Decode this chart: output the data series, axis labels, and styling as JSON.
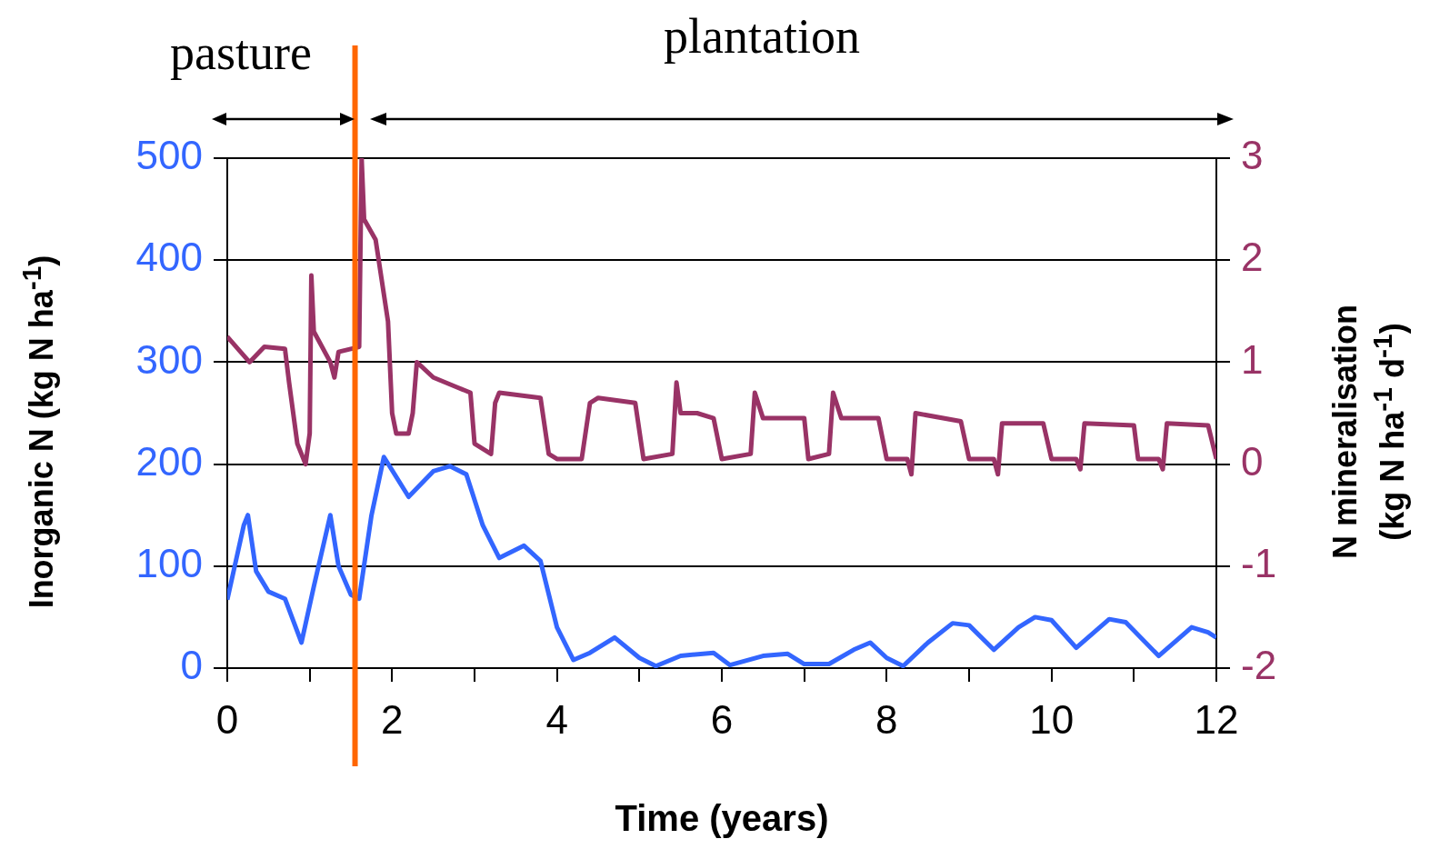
{
  "chart_data": {
    "type": "line",
    "xlabel": "Time (years)",
    "ylabel": "Inorganic N (kg N ha$^{-1}$)",
    "y2label": "N mineralisation\n(kg N ha$^{-1}$ d$^{-1}$)",
    "annotations": [
      "pasture",
      "plantation"
    ],
    "xlim": [
      0,
      12
    ],
    "xticks": [
      0,
      {
        "value": 1,
        "label": null
      },
      2,
      {
        "value": 3,
        "label": null
      },
      4,
      {
        "value": 5,
        "label": null
      },
      6,
      {
        "value": 7,
        "label": null
      },
      8,
      {
        "value": 9,
        "label": null
      },
      10,
      {
        "value": 11,
        "label": null
      },
      12
    ],
    "ylim": [
      0,
      500
    ],
    "yticks": [
      0,
      100,
      200,
      300,
      400,
      500
    ],
    "y2lim": [
      -2,
      3
    ],
    "y2ticks": [
      -2,
      -1,
      0,
      1,
      2,
      3
    ],
    "grid": "y",
    "legend": false,
    "marker": "none",
    "line_style": "solid",
    "ref_lines": [
      {
        "axis": "x",
        "value": 1.55,
        "color": "#ff6600"
      }
    ],
    "series": [
      {
        "color": "#3366ff",
        "x": [
          0,
          0.2,
          0.25,
          0.35,
          0.5,
          0.7,
          0.9,
          1.05,
          1.25,
          1.35,
          1.5,
          1.6,
          1.75,
          1.9,
          2.2,
          2.5,
          2.7,
          2.9,
          3.1,
          3.3,
          3.6,
          3.8,
          4.0,
          4.2,
          4.4,
          4.7,
          5.0,
          5.2,
          5.5,
          5.9,
          6.1,
          6.5,
          6.8,
          7.0,
          7.3,
          7.6,
          7.8,
          8.0,
          8.2,
          8.5,
          8.8,
          9.0,
          9.3,
          9.6,
          9.8,
          10.0,
          10.3,
          10.7,
          10.9,
          11.3,
          11.7,
          11.9,
          12.0
        ],
        "values": [
          67,
          140,
          150,
          95,
          75,
          68,
          25,
          80,
          150,
          100,
          72,
          68,
          150,
          207,
          168,
          193,
          198,
          190,
          140,
          108,
          120,
          105,
          40,
          8,
          15,
          30,
          10,
          2,
          12,
          15,
          3,
          12,
          14,
          4,
          4,
          18,
          25,
          10,
          2,
          25,
          44,
          42,
          18,
          40,
          50,
          47,
          20,
          48,
          45,
          12,
          40,
          35,
          30
        ]
      },
      {
        "color": "#993366",
        "axis": "y2",
        "x": [
          0,
          0.27,
          0.45,
          0.7,
          0.75,
          0.85,
          0.95,
          1.0,
          1.02,
          1.05,
          1.25,
          1.3,
          1.35,
          1.6,
          1.63,
          1.66,
          1.8,
          1.95,
          2.0,
          2.05,
          2.2,
          2.25,
          2.3,
          2.5,
          2.8,
          2.95,
          3.0,
          3.2,
          3.25,
          3.3,
          3.8,
          3.9,
          4.0,
          4.3,
          4.4,
          4.5,
          4.95,
          5.05,
          5.4,
          5.45,
          5.5,
          5.7,
          5.9,
          6.0,
          6.35,
          6.4,
          6.5,
          7.0,
          7.05,
          7.3,
          7.35,
          7.45,
          7.9,
          8.0,
          8.25,
          8.3,
          8.35,
          8.9,
          9.0,
          9.3,
          9.35,
          9.4,
          9.9,
          10.0,
          10.3,
          10.35,
          10.4,
          11.0,
          11.05,
          11.3,
          11.35,
          11.4,
          11.9,
          12.0
        ],
        "values": [
          1.25,
          1.0,
          1.15,
          1.13,
          0.8,
          0.2,
          0.0,
          0.3,
          1.85,
          1.3,
          1.0,
          0.85,
          1.1,
          1.15,
          3.0,
          2.4,
          2.2,
          1.4,
          0.5,
          0.3,
          0.3,
          0.5,
          1.0,
          0.85,
          0.75,
          0.7,
          0.2,
          0.1,
          0.6,
          0.7,
          0.65,
          0.1,
          0.05,
          0.05,
          0.6,
          0.65,
          0.6,
          0.05,
          0.1,
          0.8,
          0.5,
          0.5,
          0.45,
          0.05,
          0.1,
          0.7,
          0.45,
          0.45,
          0.05,
          0.1,
          0.7,
          0.45,
          0.45,
          0.05,
          0.05,
          -0.1,
          0.5,
          0.42,
          0.05,
          0.05,
          -0.1,
          0.4,
          0.4,
          0.05,
          0.05,
          -0.05,
          0.4,
          0.38,
          0.05,
          0.05,
          -0.05,
          0.4,
          0.38,
          0.05
        ]
      }
    ]
  }
}
